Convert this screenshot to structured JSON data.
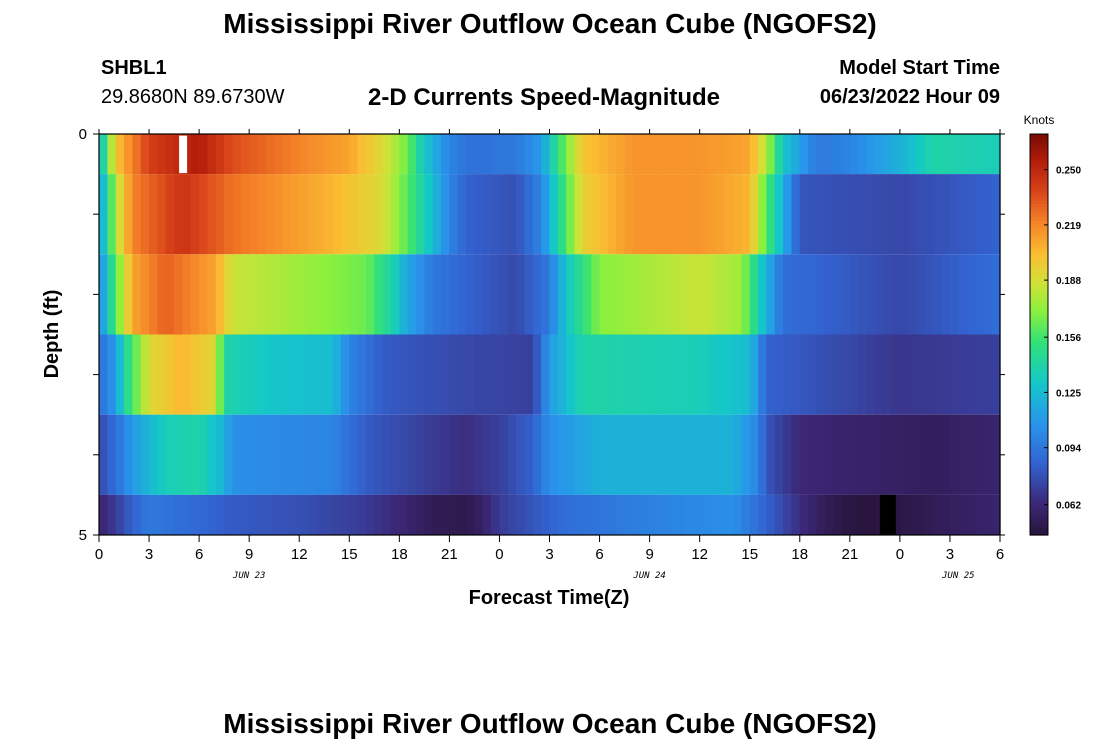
{
  "header": {
    "title": "Mississippi River Outflow Ocean Cube (NGOFS2)",
    "station": "SHBL1",
    "coordinates": "29.8680N  89.6730W",
    "product": "2-D Currents Speed-Magnitude",
    "model_start_label": "Model Start Time",
    "model_start_value": "06/23/2022 Hour 09"
  },
  "footer": {
    "title": "Mississippi River Outflow Ocean Cube (NGOFS2)"
  },
  "chart_data": {
    "type": "heatmap",
    "xlabel": "Forecast Time(Z)",
    "ylabel": "Depth (ft)",
    "x_tick_labels": [
      "0",
      "3",
      "6",
      "9",
      "12",
      "15",
      "18",
      "21",
      "0",
      "3",
      "6",
      "9",
      "12",
      "15",
      "18",
      "21",
      "0",
      "3",
      "6"
    ],
    "date_labels": [
      "JUN 23",
      "JUN 24",
      "JUN 25"
    ],
    "y_tick_labels": [
      "0",
      "5"
    ],
    "ylim": [
      0,
      5
    ],
    "x_hours": [
      0,
      54
    ],
    "colorbar": {
      "unit": "Knots",
      "tick_labels": [
        "0.250",
        "0.219",
        "0.188",
        "0.156",
        "0.125",
        "0.094",
        "0.062"
      ],
      "range": [
        0.045,
        0.27
      ]
    },
    "layers": [
      {
        "depth_band": "0-0.5",
        "key_points": [
          [
            0,
            0.12
          ],
          [
            0.5,
            0.16
          ],
          [
            1,
            0.2
          ],
          [
            3,
            0.24
          ],
          [
            6,
            0.255
          ],
          [
            8,
            0.235
          ],
          [
            12,
            0.22
          ],
          [
            15,
            0.21
          ],
          [
            17,
            0.19
          ],
          [
            18.5,
            0.165
          ],
          [
            19.5,
            0.13
          ],
          [
            21,
            0.1
          ],
          [
            22,
            0.092
          ],
          [
            23,
            0.092
          ],
          [
            25,
            0.095
          ],
          [
            26.5,
            0.11
          ],
          [
            27.5,
            0.15
          ],
          [
            29,
            0.2
          ],
          [
            32,
            0.215
          ],
          [
            36,
            0.215
          ],
          [
            39,
            0.21
          ],
          [
            40,
            0.18
          ],
          [
            41,
            0.13
          ],
          [
            43,
            0.095
          ],
          [
            45,
            0.1
          ],
          [
            48,
            0.12
          ],
          [
            50,
            0.14
          ],
          [
            54,
            0.135
          ]
        ]
      },
      {
        "depth_band": "0.5-1.5",
        "key_points": [
          [
            0,
            0.11
          ],
          [
            0.5,
            0.14
          ],
          [
            1,
            0.18
          ],
          [
            2,
            0.22
          ],
          [
            5,
            0.245
          ],
          [
            8,
            0.225
          ],
          [
            14,
            0.205
          ],
          [
            17,
            0.19
          ],
          [
            18.5,
            0.16
          ],
          [
            20,
            0.125
          ],
          [
            21,
            0.1
          ],
          [
            22,
            0.085
          ],
          [
            25,
            0.078
          ],
          [
            26.5,
            0.1
          ],
          [
            27.5,
            0.14
          ],
          [
            29,
            0.195
          ],
          [
            32,
            0.215
          ],
          [
            36,
            0.215
          ],
          [
            39,
            0.205
          ],
          [
            40,
            0.16
          ],
          [
            41,
            0.12
          ],
          [
            42,
            0.08
          ],
          [
            48,
            0.075
          ],
          [
            54,
            0.085
          ]
        ]
      },
      {
        "depth_band": "1.5-2.5",
        "key_points": [
          [
            0,
            0.1
          ],
          [
            0.5,
            0.13
          ],
          [
            1,
            0.16
          ],
          [
            2,
            0.21
          ],
          [
            4,
            0.23
          ],
          [
            7,
            0.21
          ],
          [
            8,
            0.185
          ],
          [
            12,
            0.175
          ],
          [
            16,
            0.165
          ],
          [
            17.5,
            0.14
          ],
          [
            18.5,
            0.115
          ],
          [
            20,
            0.095
          ],
          [
            22,
            0.085
          ],
          [
            25,
            0.075
          ],
          [
            27,
            0.095
          ],
          [
            28,
            0.13
          ],
          [
            30,
            0.17
          ],
          [
            36,
            0.185
          ],
          [
            38.5,
            0.175
          ],
          [
            40,
            0.12
          ],
          [
            41,
            0.09
          ],
          [
            48,
            0.075
          ],
          [
            54,
            0.09
          ]
        ]
      },
      {
        "depth_band": "2.5-3.5",
        "key_points": [
          [
            0,
            0.09
          ],
          [
            1,
            0.11
          ],
          [
            1.5,
            0.14
          ],
          [
            3,
            0.19
          ],
          [
            5,
            0.205
          ],
          [
            7,
            0.19
          ],
          [
            7.5,
            0.14
          ],
          [
            10,
            0.13
          ],
          [
            14,
            0.125
          ],
          [
            15,
            0.1
          ],
          [
            17,
            0.082
          ],
          [
            22,
            0.075
          ],
          [
            26,
            0.072
          ],
          [
            27,
            0.11
          ],
          [
            29,
            0.14
          ],
          [
            36,
            0.135
          ],
          [
            39,
            0.125
          ],
          [
            40,
            0.085
          ],
          [
            48,
            0.068
          ],
          [
            54,
            0.072
          ]
        ]
      },
      {
        "depth_band": "3.5-4.5",
        "key_points": [
          [
            0,
            0.075
          ],
          [
            1,
            0.09
          ],
          [
            2,
            0.11
          ],
          [
            4,
            0.135
          ],
          [
            6,
            0.14
          ],
          [
            7.5,
            0.12
          ],
          [
            8,
            0.105
          ],
          [
            14,
            0.1
          ],
          [
            16,
            0.082
          ],
          [
            20,
            0.07
          ],
          [
            22,
            0.065
          ],
          [
            24,
            0.072
          ],
          [
            26,
            0.085
          ],
          [
            27,
            0.105
          ],
          [
            30,
            0.12
          ],
          [
            38,
            0.12
          ],
          [
            39.5,
            0.1
          ],
          [
            40,
            0.08
          ],
          [
            42,
            0.062
          ],
          [
            46,
            0.058
          ],
          [
            50,
            0.055
          ],
          [
            54,
            0.06
          ]
        ]
      },
      {
        "depth_band": "4.5-5",
        "key_points": [
          [
            0,
            0.06
          ],
          [
            1,
            0.07
          ],
          [
            2,
            0.085
          ],
          [
            3,
            0.095
          ],
          [
            5,
            0.09
          ],
          [
            8,
            0.082
          ],
          [
            12,
            0.078
          ],
          [
            16,
            0.07
          ],
          [
            18,
            0.062
          ],
          [
            20,
            0.053
          ],
          [
            22,
            0.05
          ],
          [
            23,
            0.058
          ],
          [
            24,
            0.07
          ],
          [
            26,
            0.08
          ],
          [
            28,
            0.09
          ],
          [
            34,
            0.1
          ],
          [
            38,
            0.105
          ],
          [
            40,
            0.085
          ],
          [
            42,
            0.065
          ],
          [
            44,
            0.05
          ],
          [
            46,
            0.045
          ],
          [
            47,
            0.047
          ],
          [
            49,
            0.05
          ],
          [
            51,
            0.055
          ],
          [
            54,
            0.06
          ]
        ]
      }
    ]
  }
}
